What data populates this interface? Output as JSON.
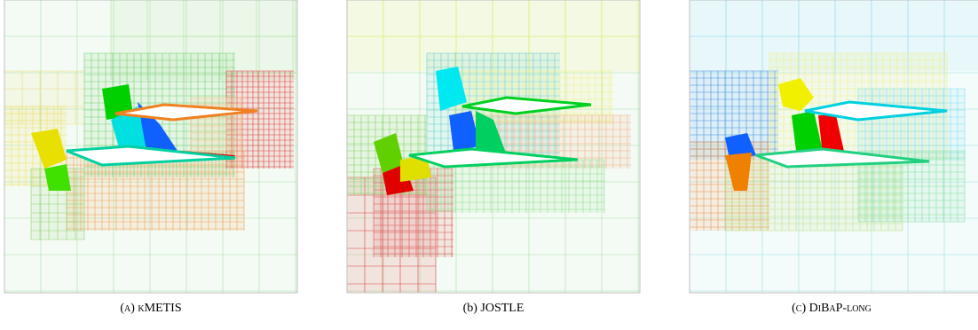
{
  "captions": [
    "(a) kMETIS",
    "(b) JOSTLE",
    "(c) DiBaP-long"
  ]
}
